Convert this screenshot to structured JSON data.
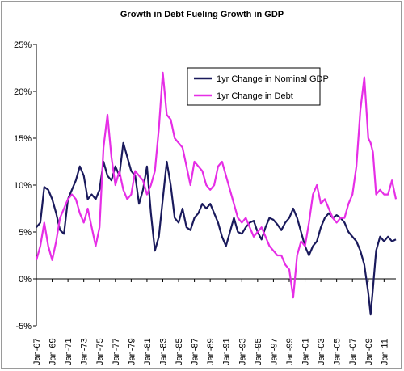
{
  "chart_data": {
    "type": "line",
    "title": "Growth in Debt Fueling Growth in GDP",
    "xlabel": "",
    "ylabel": "",
    "ylim": [
      -5,
      25
    ],
    "y_ticks": [
      "25%",
      "20%",
      "15%",
      "10%",
      "5%",
      "0%",
      "-5%"
    ],
    "y_tick_values": [
      25,
      20,
      15,
      10,
      5,
      0,
      -5
    ],
    "x_range": [
      1967.0,
      2012.5
    ],
    "x_ticks": [
      "Jan-67",
      "Jan-69",
      "Jan-71",
      "Jan-73",
      "Jan-75",
      "Jan-77",
      "Jan-79",
      "Jan-81",
      "Jan-83",
      "Jan-85",
      "Jan-87",
      "Jan-89",
      "Jan-91",
      "Jan-93",
      "Jan-95",
      "Jan-97",
      "Jan-99",
      "Jan-01",
      "Jan-03",
      "Jan-05",
      "Jan-07",
      "Jan-09",
      "Jan-11"
    ],
    "x_tick_years": [
      1967,
      1969,
      1971,
      1973,
      1975,
      1977,
      1979,
      1981,
      1983,
      1985,
      1987,
      1989,
      1991,
      1993,
      1995,
      1997,
      1999,
      2001,
      2003,
      2005,
      2007,
      2009,
      2011
    ],
    "grid": false,
    "legend_position": "top-right",
    "series": [
      {
        "name": "1yr Change in Nominal GDP",
        "color": "#1a1a5c",
        "x": [
          1967.0,
          1967.5,
          1968.0,
          1968.5,
          1969.0,
          1969.5,
          1970.0,
          1970.5,
          1971.0,
          1971.5,
          1972.0,
          1972.5,
          1973.0,
          1973.5,
          1974.0,
          1974.5,
          1975.0,
          1975.5,
          1976.0,
          1976.5,
          1977.0,
          1977.5,
          1978.0,
          1978.5,
          1979.0,
          1979.5,
          1980.0,
          1980.5,
          1981.0,
          1981.5,
          1982.0,
          1982.5,
          1983.0,
          1983.5,
          1984.0,
          1984.5,
          1985.0,
          1985.5,
          1986.0,
          1986.5,
          1987.0,
          1987.5,
          1988.0,
          1988.5,
          1989.0,
          1989.5,
          1990.0,
          1990.5,
          1991.0,
          1991.5,
          1992.0,
          1992.5,
          1993.0,
          1993.5,
          1994.0,
          1994.5,
          1995.0,
          1995.5,
          1996.0,
          1996.5,
          1997.0,
          1997.5,
          1998.0,
          1998.5,
          1999.0,
          1999.5,
          2000.0,
          2000.5,
          2001.0,
          2001.5,
          2002.0,
          2002.5,
          2003.0,
          2003.5,
          2004.0,
          2004.5,
          2005.0,
          2005.5,
          2006.0,
          2006.5,
          2007.0,
          2007.5,
          2008.0,
          2008.5,
          2009.0,
          2009.3,
          2009.6,
          2010.0,
          2010.5,
          2011.0,
          2011.5,
          2012.0,
          2012.5
        ],
        "values": [
          5.5,
          6.0,
          9.8,
          9.5,
          8.5,
          7.0,
          5.2,
          4.8,
          8.5,
          9.5,
          10.5,
          12.0,
          11.0,
          8.5,
          9.0,
          8.5,
          9.5,
          12.5,
          11.0,
          10.5,
          12.0,
          11.0,
          14.5,
          13.0,
          11.5,
          11.0,
          8.0,
          9.5,
          12.0,
          7.0,
          3.0,
          4.5,
          8.5,
          12.5,
          10.0,
          6.5,
          6.0,
          7.5,
          5.5,
          5.2,
          6.5,
          7.0,
          8.0,
          7.5,
          8.0,
          7.0,
          6.0,
          4.5,
          3.5,
          5.0,
          6.5,
          5.0,
          4.8,
          5.5,
          6.0,
          6.2,
          5.0,
          4.2,
          5.5,
          6.5,
          6.3,
          5.8,
          5.2,
          6.0,
          6.5,
          7.5,
          6.5,
          5.0,
          3.5,
          2.5,
          3.5,
          4.0,
          5.5,
          6.5,
          7.0,
          6.5,
          6.8,
          6.5,
          6.0,
          5.0,
          4.5,
          4.0,
          3.0,
          1.5,
          -1.5,
          -3.8,
          -1.0,
          3.0,
          4.5,
          4.0,
          4.5,
          4.0,
          4.2
        ]
      },
      {
        "name": "1yr Change in Debt",
        "color": "#e62ee6",
        "x": [
          1967.0,
          1967.5,
          1968.0,
          1968.5,
          1969.0,
          1969.5,
          1970.0,
          1970.5,
          1971.0,
          1971.5,
          1972.0,
          1972.5,
          1973.0,
          1973.5,
          1974.0,
          1974.5,
          1975.0,
          1975.5,
          1976.0,
          1976.5,
          1977.0,
          1977.5,
          1978.0,
          1978.5,
          1979.0,
          1979.5,
          1980.0,
          1980.5,
          1981.0,
          1981.5,
          1982.0,
          1982.5,
          1983.0,
          1983.5,
          1984.0,
          1984.5,
          1985.0,
          1985.5,
          1986.0,
          1986.5,
          1987.0,
          1987.5,
          1988.0,
          1988.5,
          1989.0,
          1989.5,
          1990.0,
          1990.5,
          1991.0,
          1991.5,
          1992.0,
          1992.5,
          1993.0,
          1993.5,
          1994.0,
          1994.5,
          1995.0,
          1995.5,
          1996.0,
          1996.5,
          1997.0,
          1997.5,
          1998.0,
          1998.5,
          1999.0,
          1999.5,
          2000.0,
          2000.5,
          2001.0,
          2001.5,
          2002.0,
          2002.5,
          2003.0,
          2003.5,
          2004.0,
          2004.5,
          2005.0,
          2005.5,
          2006.0,
          2006.5,
          2007.0,
          2007.5,
          2008.0,
          2008.5,
          2009.0,
          2009.3,
          2009.6,
          2010.0,
          2010.5,
          2011.0,
          2011.5,
          2012.0,
          2012.5
        ],
        "values": [
          2.0,
          3.5,
          6.0,
          3.5,
          2.0,
          4.0,
          6.5,
          7.5,
          8.5,
          9.0,
          8.5,
          7.0,
          6.0,
          7.5,
          5.5,
          3.5,
          5.5,
          14.0,
          17.5,
          13.0,
          10.0,
          11.5,
          9.5,
          8.5,
          9.0,
          11.5,
          11.0,
          10.5,
          9.0,
          10.0,
          11.5,
          16.0,
          22.0,
          17.5,
          17.0,
          15.0,
          14.5,
          14.0,
          12.0,
          10.0,
          12.5,
          12.0,
          11.5,
          10.0,
          9.5,
          10.0,
          12.0,
          12.5,
          11.0,
          9.5,
          8.0,
          6.5,
          6.0,
          6.5,
          5.5,
          4.5,
          5.0,
          5.5,
          4.5,
          3.5,
          3.0,
          2.5,
          2.5,
          1.5,
          1.0,
          -2.0,
          2.5,
          4.0,
          3.5,
          6.0,
          9.0,
          10.0,
          8.0,
          8.5,
          7.5,
          6.5,
          6.0,
          6.5,
          6.5,
          8.0,
          9.0,
          12.0,
          18.0,
          21.5,
          15.0,
          14.5,
          13.5,
          9.0,
          9.5,
          9.0,
          9.0,
          10.5,
          8.5
        ]
      }
    ]
  }
}
